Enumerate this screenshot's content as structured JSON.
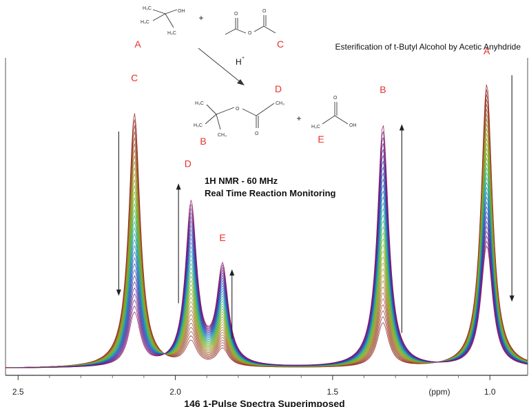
{
  "chart_data": {
    "type": "line",
    "title": "Esterification of t-Butyl Alcohol by Acetic Anyhdride",
    "subtitle_line1": "1H NMR - 60 MHz",
    "subtitle_line2": "Real Time Reaction Monitoring",
    "xlabel": "146 1-Pulse Spectra Superimposed",
    "x_unit": "(ppm)",
    "x_reversed": true,
    "xlim": [
      2.54,
      0.88
    ],
    "ylim": [
      0,
      1
    ],
    "x_ticks": [
      {
        "value": 2.5,
        "label": "2.5"
      },
      {
        "value": 2.0,
        "label": "2.0"
      },
      {
        "value": 1.5,
        "label": "1.5"
      },
      {
        "value": 1.0,
        "label": "1.0"
      }
    ],
    "spectrum_count": 146,
    "color_scale": [
      "#8b1a1a",
      "#a0522d",
      "#9a9a20",
      "#6ab023",
      "#1fa89a",
      "#1f5fc0",
      "#4b2a9a",
      "#8a1060"
    ],
    "peaks": [
      {
        "label": "C",
        "ppm": 2.13,
        "height_start": 0.86,
        "height_end": 0.18,
        "trend": "decreasing"
      },
      {
        "label": "D",
        "ppm": 1.95,
        "height_start": 0.08,
        "height_end": 0.55,
        "trend": "increasing"
      },
      {
        "label": "E",
        "ppm": 1.85,
        "height_start": 0.06,
        "height_end": 0.33,
        "trend": "increasing"
      },
      {
        "label": "B",
        "ppm": 1.34,
        "height_start": 0.15,
        "height_end": 0.82,
        "trend": "increasing"
      },
      {
        "label": "A",
        "ppm": 1.01,
        "height_start": 0.96,
        "height_end": 0.41,
        "trend": "decreasing"
      }
    ],
    "peak_labels": [
      {
        "text": "C",
        "ppm": 2.13,
        "level": 0.97
      },
      {
        "text": "D",
        "ppm": 1.96,
        "level": 0.68
      },
      {
        "text": "E",
        "ppm": 1.85,
        "level": 0.43
      },
      {
        "text": "B",
        "ppm": 1.34,
        "level": 0.93
      },
      {
        "text": "A",
        "ppm": 1.01,
        "level": 1.06
      }
    ],
    "arrows": [
      {
        "ppm": 2.18,
        "from": 0.8,
        "to": 0.25,
        "direction": "down"
      },
      {
        "ppm": 1.99,
        "from": 0.22,
        "to": 0.62,
        "direction": "up"
      },
      {
        "ppm": 1.82,
        "from": 0.1,
        "to": 0.33,
        "direction": "up"
      },
      {
        "ppm": 1.28,
        "from": 0.12,
        "to": 0.82,
        "direction": "up"
      },
      {
        "ppm": 0.93,
        "from": 0.99,
        "to": 0.23,
        "direction": "down"
      }
    ]
  },
  "scheme": {
    "reactant_a_label": "A",
    "reactant_c_label": "C",
    "product_b_label": "B",
    "product_d_label": "D",
    "product_e_label": "E",
    "plus": "+",
    "catalyst": "H",
    "catalyst_charge": "+",
    "atoms": {
      "h3c": "H₃C",
      "ch3": "CH₃",
      "oh": "OH",
      "o": "O"
    }
  }
}
